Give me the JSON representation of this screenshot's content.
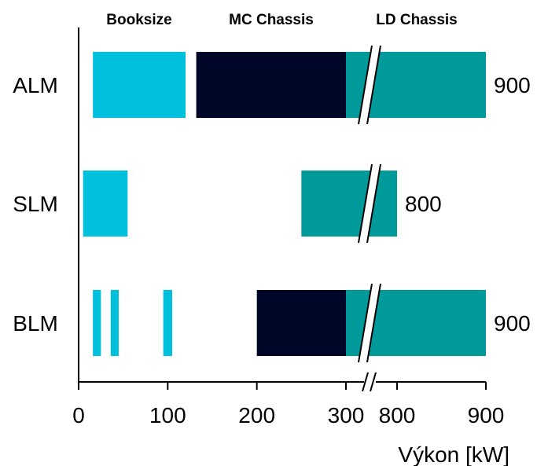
{
  "chart_data": {
    "type": "bar",
    "orientation": "horizontal",
    "title": "",
    "xlabel": "Výkon [kW]",
    "ylabel": "",
    "x_axis": {
      "segments": [
        {
          "range": [
            0,
            300
          ],
          "ticks": [
            0,
            100,
            200,
            300
          ]
        },
        {
          "range": [
            700,
            900
          ],
          "ticks": [
            800,
            900
          ]
        }
      ],
      "break_between": [
        300,
        700
      ]
    },
    "headers": [
      "Booksize",
      "MC Chassis",
      "LD Chassis"
    ],
    "categories": [
      "ALM",
      "SLM",
      "BLM"
    ],
    "series": [
      {
        "name": "Booksize",
        "color": "#00c0dc",
        "ranges": [
          {
            "category": "ALM",
            "start": 16,
            "end": 120
          },
          {
            "category": "SLM",
            "start": 5,
            "end": 55
          },
          {
            "category": "BLM",
            "start": 16,
            "end": 25
          },
          {
            "category": "BLM",
            "start": 36,
            "end": 45
          },
          {
            "category": "BLM",
            "start": 95,
            "end": 105
          }
        ]
      },
      {
        "name": "MC Chassis",
        "color": "#000628",
        "ranges": [
          {
            "category": "ALM",
            "start": 132,
            "end": 300
          },
          {
            "category": "BLM",
            "start": 200,
            "end": 300
          }
        ]
      },
      {
        "name": "LD Chassis",
        "color": "#009a9b",
        "ranges": [
          {
            "category": "ALM",
            "start": 300,
            "end": 900
          },
          {
            "category": "SLM",
            "start": 250,
            "end": 800
          },
          {
            "category": "BLM",
            "start": 300,
            "end": 900
          }
        ]
      }
    ],
    "end_labels": [
      {
        "category": "ALM",
        "text": "900"
      },
      {
        "category": "SLM",
        "text": "800"
      },
      {
        "category": "BLM",
        "text": "900"
      }
    ],
    "grid": false,
    "legend": "none"
  }
}
